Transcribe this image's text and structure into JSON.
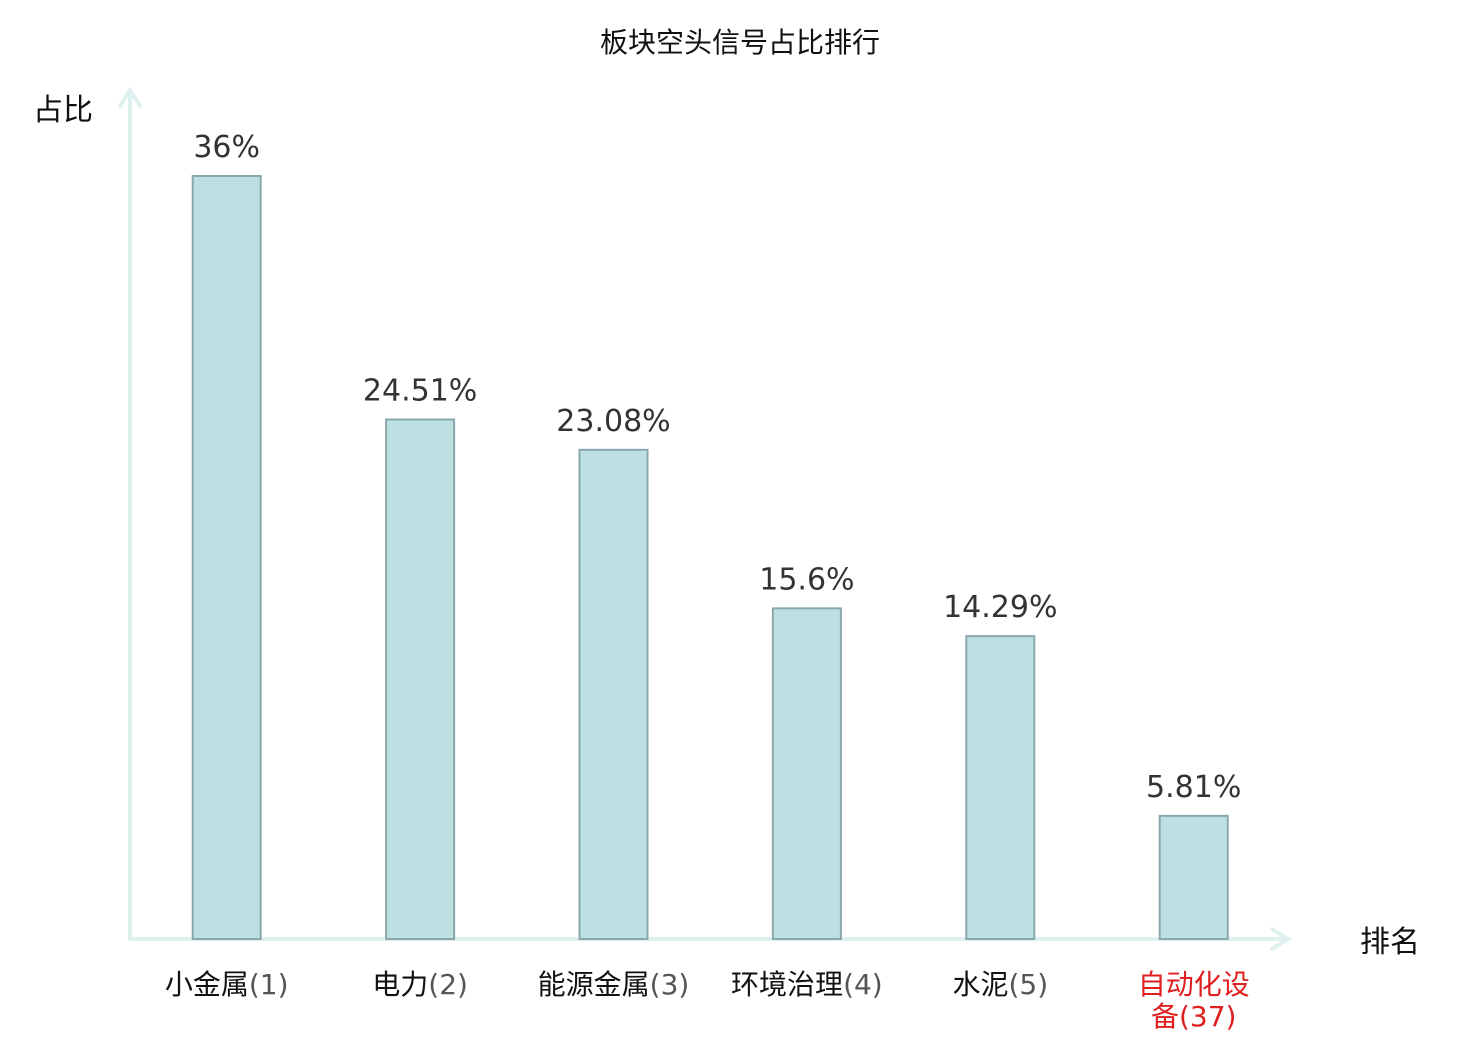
{
  "chart_data": {
    "type": "bar",
    "title": "板块空头信号占比排行",
    "ylabel": "占比",
    "xlabel": "排名",
    "ylim": [
      0,
      40
    ],
    "categories": [
      {
        "name": "小金属",
        "rank": "(1)",
        "highlight": false
      },
      {
        "name": "电力",
        "rank": "(2)",
        "highlight": false
      },
      {
        "name": "能源金属",
        "rank": "(3)",
        "highlight": false
      },
      {
        "name": "环境治理",
        "rank": "(4)",
        "highlight": false
      },
      {
        "name": "水泥",
        "rank": "(5)",
        "highlight": false
      },
      {
        "name": "自动化设备",
        "rank": "(37)",
        "highlight": true
      }
    ],
    "values": [
      36,
      24.51,
      23.08,
      15.6,
      14.29,
      5.81
    ],
    "value_labels": [
      "36%",
      "24.51%",
      "23.08%",
      "15.6%",
      "14.29%",
      "5.81%"
    ],
    "grid": false,
    "colors": {
      "bar_fill": "#bde0e3",
      "bar_stroke": "#8aa8ac",
      "axis": "#dff1ef",
      "highlight": "#e02020"
    }
  }
}
